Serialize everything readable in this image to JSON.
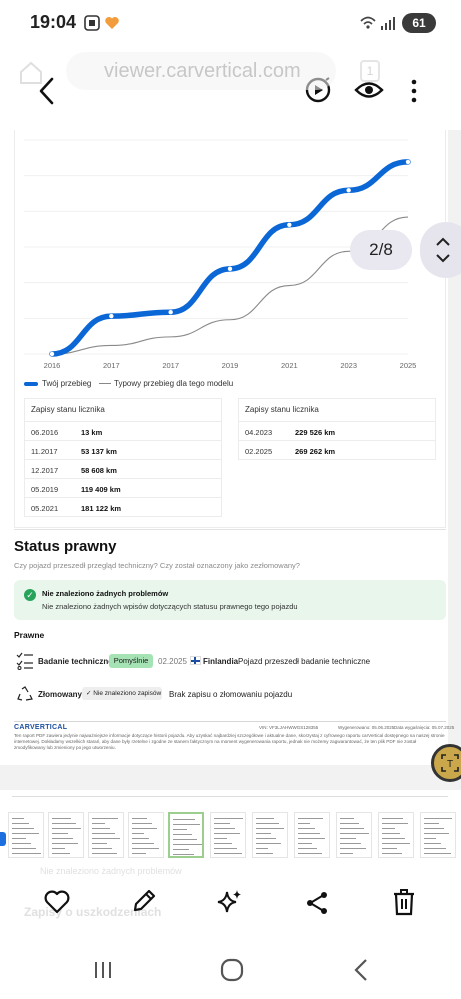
{
  "status_bar": {
    "time": "19:04",
    "battery": "61"
  },
  "browser": {
    "url": "viewer.carvertical.com",
    "tab_count": "1"
  },
  "colors": {
    "accent": "#0b66d6",
    "success": "#27a35a",
    "badge_green": "#a6e3b4"
  },
  "chart_data": {
    "type": "line",
    "x_labels": [
      "2016",
      "2017",
      "2017",
      "2019",
      "2021",
      "2023",
      "2025"
    ],
    "series": [
      {
        "name": "Twój przebieg",
        "values": [
          13,
          53137,
          58608,
          119409,
          181122,
          229526,
          269262
        ],
        "style": "thick-blue-markers"
      },
      {
        "name": "Typowy przebieg dla tego modelu",
        "values": [
          13,
          12000,
          24000,
          48000,
          96000,
          144000,
          192000
        ],
        "style": "thin-gray"
      }
    ],
    "grid": true,
    "legend_position": "bottom-left"
  },
  "legend": {
    "yours": "Twój przebieg",
    "typical": "Typowy przebieg dla tego modelu"
  },
  "odometer": {
    "left_title": "Zapisy stanu licznika",
    "right_title": "Zapisy stanu licznika",
    "left_rows": [
      {
        "date": "06.2016",
        "value": "13 km"
      },
      {
        "date": "11.2017",
        "value": "53 137 km"
      },
      {
        "date": "12.2017",
        "value": "58 608 km"
      },
      {
        "date": "05.2019",
        "value": "119 409 km"
      },
      {
        "date": "05.2021",
        "value": "181 122 km"
      }
    ],
    "right_rows": [
      {
        "date": "04.2023",
        "value": "229 526 km"
      },
      {
        "date": "02.2025",
        "value": "269 262 km"
      }
    ]
  },
  "legal": {
    "title": "Status prawny",
    "subtitle": "Czy pojazd przeszedł przegląd techniczny? Czy został oznaczony jako zezłomowany?",
    "ok_title": "Nie znaleziono żadnych problemów",
    "ok_text": "Nie znaleziono żadnych wpisów dotyczących statusu prawnego tego pojazdu",
    "section": "Prawne",
    "inspection": {
      "label": "Badanie techniczne",
      "badge": "Pomyślnie",
      "date": "02.2025",
      "country": "Finlandia",
      "note": "Pojazd przeszedł badanie techniczne"
    },
    "scrapped": {
      "label": "Złomowany",
      "badge": "✓ Nie znaleziono zapisów",
      "note": "Brak zapisu o złomowaniu pojazdu"
    }
  },
  "footer": {
    "logo": "CARVERTICAL",
    "vin": "VIN: VF3LJAHWWGS128355",
    "generated": "Wygenerowano: 05.06.2025",
    "expires": "Data wygaśnięcia: 05.07.2025",
    "disclaimer": "Ten raport PDF zawiera jedynie najważniejsze informacje dotyczące historii pojazdu. Aby uzyskać najbardziej szczegółowe i aktualne dane, skorzystaj z cyfrowego raportu carVertical dostępnego na naszej stronie internetowej. Dokładamy wszelkich starań, aby dane były rzetelne i zgodne ze stanem faktycznym na moment wygenerowania raportu, jednak nie możemy zagwarantować, że ten plik PDF nie został zmodyfikowany lub zmieniony po jego utworzeniu."
  },
  "viewer": {
    "page_indicator": "2/8"
  },
  "ghost": {
    "line1": "Nie znaleziono żadnych problemów",
    "line2": "Zapisy o uszkodzeniach"
  }
}
